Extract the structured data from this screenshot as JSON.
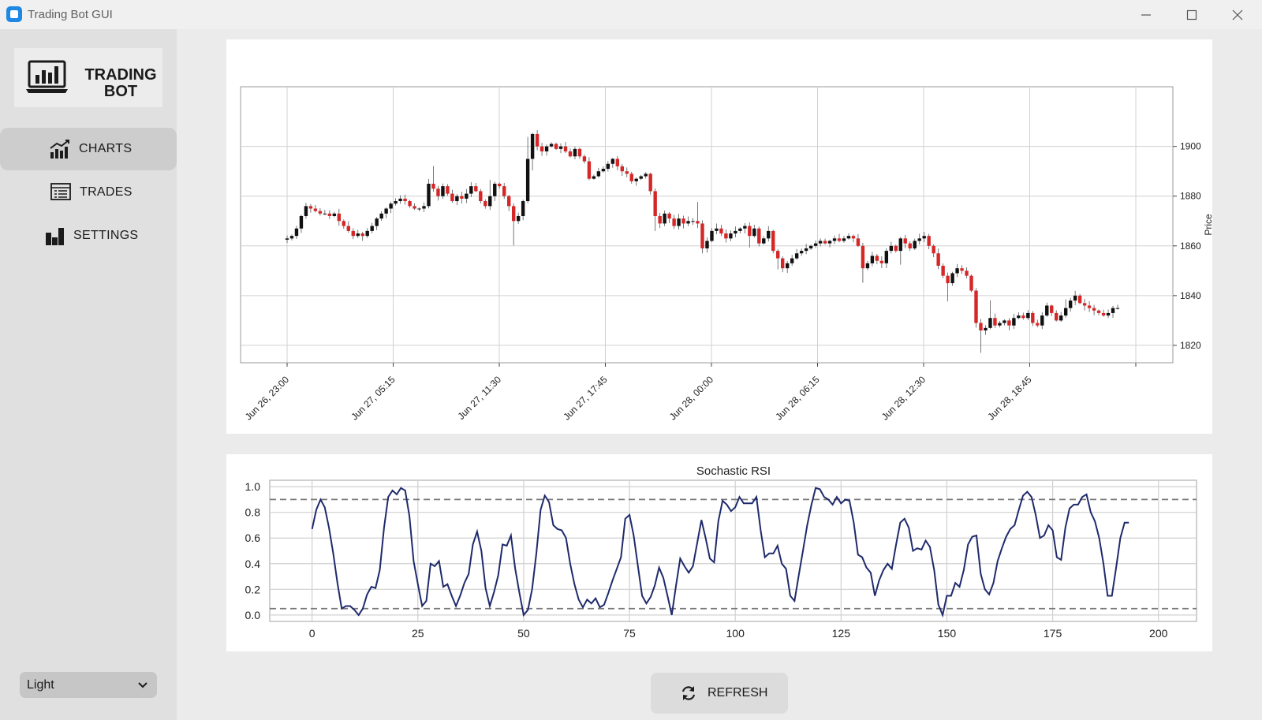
{
  "window": {
    "title": "Trading Bot GUI"
  },
  "logo": {
    "line1": "TRADING",
    "line2": "BOT"
  },
  "nav": [
    {
      "label": "CHARTS",
      "icon": "chart-icon",
      "active": true
    },
    {
      "label": "TRADES",
      "icon": "list-icon",
      "active": false
    },
    {
      "label": "SETTINGS",
      "icon": "bars-icon",
      "active": false
    }
  ],
  "theme": {
    "selected": "Light"
  },
  "refresh": {
    "label": "REFRESH"
  },
  "colors": {
    "up": "#111111",
    "down": "#d62728",
    "rsi_line": "#1f2a6b",
    "active_nav": "#cdcdcd"
  },
  "chart_data": [
    {
      "type": "candlestick",
      "title": "",
      "ylabel": "Price",
      "ylim": [
        1813,
        1924
      ],
      "yticks": [
        1820,
        1840,
        1860,
        1880,
        1900
      ],
      "xtick_labels": [
        "Jun 26, 23:00",
        "Jun 27, 05:15",
        "Jun 27, 11:30",
        "Jun 27, 17:45",
        "Jun 28, 00:00",
        "Jun 28, 06:15",
        "Jun 28, 12:30",
        "Jun 28, 18:45"
      ],
      "grid": true,
      "y_axis_side": "right",
      "close_series": [
        1863,
        1864,
        1867,
        1872,
        1876,
        1875,
        1874,
        1873,
        1873,
        1872,
        1873,
        1870,
        1868,
        1866,
        1864,
        1865,
        1864,
        1866,
        1868,
        1871,
        1873,
        1875,
        1877,
        1878,
        1879,
        1878,
        1876,
        1875,
        1875,
        1876,
        1885,
        1883,
        1880,
        1884,
        1881,
        1878,
        1880,
        1879,
        1881,
        1884,
        1882,
        1878,
        1876,
        1880,
        1885,
        1884,
        1880,
        1876,
        1870,
        1872,
        1878,
        1895,
        1905,
        1900,
        1898,
        1900,
        1901,
        1899,
        1900,
        1898,
        1896,
        1899,
        1896,
        1894,
        1887,
        1888,
        1890,
        1891,
        1893,
        1895,
        1892,
        1890,
        1889,
        1886,
        1887,
        1888,
        1889,
        1882,
        1872,
        1869,
        1873,
        1871,
        1868,
        1871,
        1869,
        1870,
        1870,
        1869,
        1859,
        1862,
        1866,
        1867,
        1865,
        1863,
        1865,
        1866,
        1867,
        1868,
        1864,
        1867,
        1861,
        1863,
        1866,
        1858,
        1855,
        1851,
        1853,
        1855,
        1857,
        1858,
        1859,
        1860,
        1861,
        1862,
        1861,
        1862,
        1863,
        1862,
        1863,
        1864,
        1863,
        1860,
        1851,
        1853,
        1856,
        1854,
        1853,
        1858,
        1860,
        1858,
        1863,
        1861,
        1859,
        1862,
        1863,
        1864,
        1860,
        1857,
        1852,
        1848,
        1845,
        1849,
        1851,
        1850,
        1848,
        1842,
        1829,
        1826,
        1827,
        1831,
        1828,
        1829,
        1830,
        1828,
        1831,
        1832,
        1831,
        1833,
        1829,
        1828,
        1832,
        1836,
        1833,
        1830,
        1832,
        1835,
        1838,
        1840,
        1837,
        1836,
        1835,
        1834,
        1833,
        1832,
        1833,
        1835,
        1835
      ]
    },
    {
      "type": "line",
      "title": "Sochastic RSI",
      "xlim": [
        -10,
        209
      ],
      "ylim": [
        -0.05,
        1.05
      ],
      "xticks": [
        0,
        25,
        50,
        75,
        100,
        125,
        150,
        175,
        200
      ],
      "yticks": [
        0.0,
        0.2,
        0.4,
        0.6,
        0.8,
        1.0
      ],
      "hlines": [
        0.9,
        0.05
      ],
      "grid": true,
      "series": [
        {
          "values": [
            0.67,
            0.82,
            0.9,
            0.84,
            0.68,
            0.48,
            0.25,
            0.05,
            0.07,
            0.07,
            0.04,
            0.0,
            0.05,
            0.16,
            0.22,
            0.21,
            0.35,
            0.68,
            0.92,
            0.97,
            0.94,
            0.99,
            0.97,
            0.77,
            0.42,
            0.24,
            0.07,
            0.11,
            0.4,
            0.38,
            0.42,
            0.22,
            0.24,
            0.15,
            0.07,
            0.15,
            0.25,
            0.32,
            0.55,
            0.65,
            0.5,
            0.21,
            0.07,
            0.18,
            0.31,
            0.55,
            0.54,
            0.62,
            0.36,
            0.17,
            0.0,
            0.04,
            0.2,
            0.48,
            0.82,
            0.93,
            0.88,
            0.7,
            0.67,
            0.66,
            0.6,
            0.4,
            0.24,
            0.12,
            0.06,
            0.12,
            0.09,
            0.13,
            0.06,
            0.08,
            0.17,
            0.27,
            0.36,
            0.45,
            0.75,
            0.78,
            0.62,
            0.38,
            0.15,
            0.09,
            0.14,
            0.23,
            0.37,
            0.29,
            0.15,
            0.0,
            0.23,
            0.44,
            0.38,
            0.33,
            0.38,
            0.56,
            0.74,
            0.6,
            0.44,
            0.41,
            0.73,
            0.89,
            0.86,
            0.81,
            0.84,
            0.92,
            0.87,
            0.87,
            0.87,
            0.92,
            0.66,
            0.45,
            0.48,
            0.48,
            0.54,
            0.4,
            0.36,
            0.15,
            0.11,
            0.31,
            0.5,
            0.7,
            0.86,
            0.99,
            0.98,
            0.92,
            0.9,
            0.86,
            0.92,
            0.87,
            0.9,
            0.89,
            0.72,
            0.47,
            0.45,
            0.37,
            0.33,
            0.15,
            0.27,
            0.35,
            0.4,
            0.36,
            0.55,
            0.72,
            0.75,
            0.68,
            0.5,
            0.52,
            0.51,
            0.58,
            0.53,
            0.35,
            0.08,
            0.0,
            0.15,
            0.15,
            0.25,
            0.22,
            0.35,
            0.55,
            0.61,
            0.62,
            0.32,
            0.2,
            0.16,
            0.25,
            0.42,
            0.52,
            0.61,
            0.67,
            0.7,
            0.82,
            0.93,
            0.96,
            0.92,
            0.78,
            0.6,
            0.62,
            0.7,
            0.66,
            0.45,
            0.43,
            0.68,
            0.83,
            0.86,
            0.86,
            0.92,
            0.94,
            0.8,
            0.73,
            0.6,
            0.4,
            0.15,
            0.15,
            0.37,
            0.6,
            0.72,
            0.72
          ]
        }
      ]
    }
  ]
}
